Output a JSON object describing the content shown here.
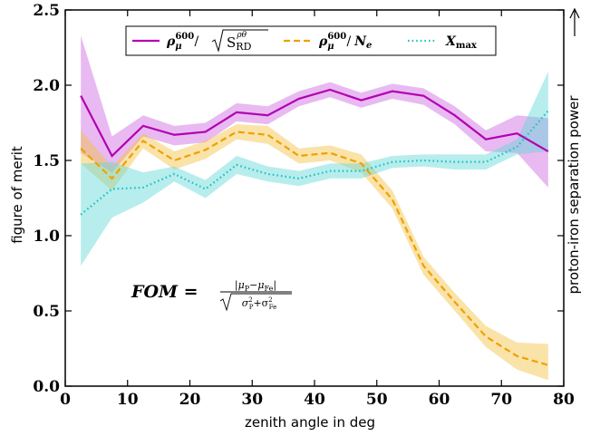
{
  "chart_data": {
    "type": "line",
    "xlabel": "zenith angle in deg",
    "ylabel": "figure of merit",
    "right_label": "proton-iron separation power",
    "xlim": [
      0,
      80
    ],
    "ylim": [
      0.0,
      2.5
    ],
    "xticks": [
      "0",
      "10",
      "20",
      "30",
      "40",
      "50",
      "60",
      "70",
      "80"
    ],
    "yticks": [
      "0.0",
      "0.5",
      "1.0",
      "1.5",
      "2.0",
      "2.5"
    ],
    "grid": false,
    "legend_position": "top",
    "formula": {
      "lhs": "FOM =",
      "numerator": "|μ_P − μ_Fe|",
      "denominator": "√(σ²_P + σ²_Fe)"
    },
    "x": [
      2.5,
      7.5,
      12.5,
      17.5,
      22.5,
      27.5,
      32.5,
      37.5,
      42.5,
      47.5,
      52.5,
      57.5,
      62.5,
      67.5,
      72.5,
      77.5
    ],
    "series": [
      {
        "name": "ρ_μ^600 / √S_RD^ρθ",
        "color": "#b300b3",
        "band_color": "#cc66e0",
        "dash": "solid",
        "values": [
          1.93,
          1.53,
          1.73,
          1.67,
          1.69,
          1.82,
          1.8,
          1.91,
          1.97,
          1.9,
          1.96,
          1.93,
          1.8,
          1.64,
          1.68,
          1.56
        ],
        "lower": [
          1.55,
          1.42,
          1.66,
          1.6,
          1.62,
          1.76,
          1.74,
          1.86,
          1.92,
          1.85,
          1.91,
          1.87,
          1.74,
          1.56,
          1.55,
          1.32
        ],
        "upper": [
          2.33,
          1.66,
          1.8,
          1.73,
          1.75,
          1.88,
          1.86,
          1.96,
          2.02,
          1.95,
          2.01,
          1.98,
          1.86,
          1.7,
          1.8,
          1.78
        ]
      },
      {
        "name": "ρ_μ^600 / N_e",
        "color": "#f0a000",
        "band_color": "#f5c040",
        "dash": "dashed",
        "values": [
          1.58,
          1.38,
          1.63,
          1.5,
          1.57,
          1.69,
          1.67,
          1.53,
          1.55,
          1.48,
          1.24,
          0.8,
          0.56,
          0.33,
          0.2,
          0.14
        ],
        "lower": [
          1.48,
          1.3,
          1.58,
          1.44,
          1.51,
          1.64,
          1.61,
          1.48,
          1.5,
          1.42,
          1.18,
          0.74,
          0.5,
          0.26,
          0.11,
          0.04
        ],
        "upper": [
          1.7,
          1.46,
          1.68,
          1.56,
          1.63,
          1.74,
          1.73,
          1.58,
          1.6,
          1.54,
          1.3,
          0.86,
          0.62,
          0.4,
          0.29,
          0.28
        ]
      },
      {
        "name": "X_max",
        "color": "#20c0c0",
        "band_color": "#60d8d8",
        "dash": "dotted",
        "values": [
          1.14,
          1.31,
          1.32,
          1.41,
          1.31,
          1.47,
          1.41,
          1.38,
          1.43,
          1.43,
          1.49,
          1.5,
          1.49,
          1.49,
          1.59,
          1.83
        ],
        "lower": [
          0.8,
          1.12,
          1.22,
          1.36,
          1.25,
          1.41,
          1.36,
          1.33,
          1.38,
          1.38,
          1.45,
          1.46,
          1.44,
          1.44,
          1.54,
          1.56
        ],
        "upper": [
          1.48,
          1.49,
          1.42,
          1.46,
          1.37,
          1.53,
          1.46,
          1.43,
          1.48,
          1.48,
          1.53,
          1.54,
          1.54,
          1.54,
          1.64,
          2.09
        ]
      }
    ]
  }
}
